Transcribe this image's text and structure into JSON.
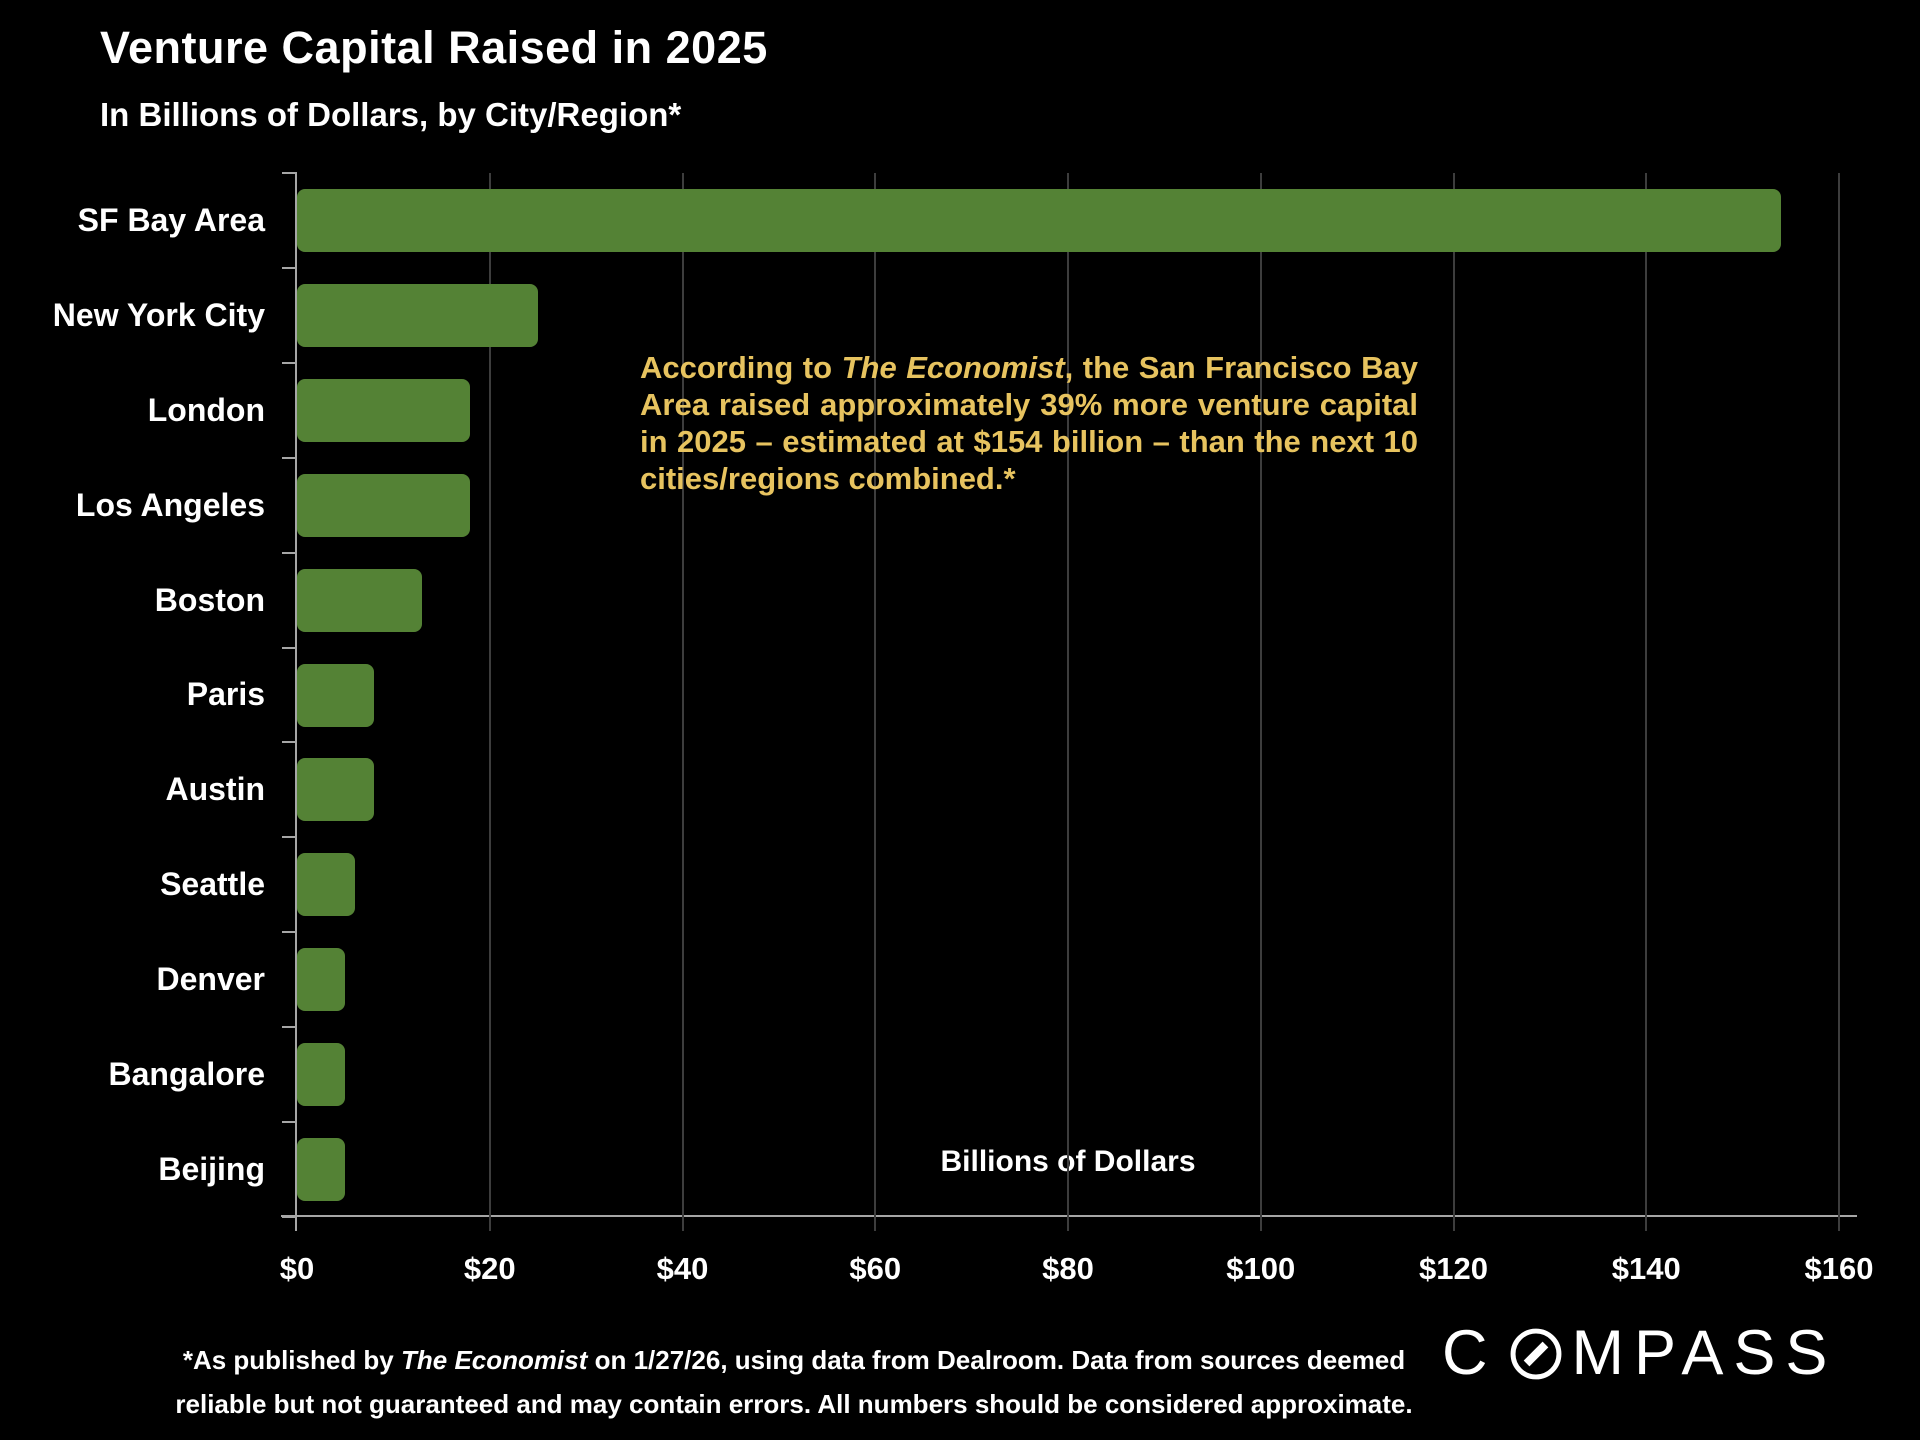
{
  "slide": {
    "title": "Venture Capital Raised in 2025",
    "subtitle": "In Billions of Dollars, by City/Region*",
    "background_color": "#000000",
    "text_color": "#ffffff"
  },
  "chart_data": {
    "type": "bar",
    "orientation": "horizontal",
    "title": "Venture Capital Raised in 2025",
    "subtitle": "In Billions of Dollars, by City/Region*",
    "categories": [
      "SF Bay Area",
      "New York City",
      "London",
      "Los Angeles",
      "Boston",
      "Paris",
      "Austin",
      "Seattle",
      "Denver",
      "Bangalore",
      "Beijing"
    ],
    "values": [
      154,
      25,
      18,
      18,
      13,
      8,
      8,
      6,
      5,
      5,
      5
    ],
    "xlabel": "Billions of Dollars",
    "ylabel": "",
    "xlim": [
      0,
      160
    ],
    "x_ticks": [
      "$0",
      "$20",
      "$40",
      "$60",
      "$80",
      "$100",
      "$120",
      "$140",
      "$160"
    ],
    "grid": true,
    "legend": false,
    "bar_color": "#548235",
    "gridline_color": "#3d3d3d",
    "axis_color": "#a6a6a6"
  },
  "annotation": {
    "color": "#e7c35f",
    "prefix": "According to ",
    "source": "The Economist",
    "rest": ", the San Francisco Bay Area raised approximately 39% more venture capital in 2025 – estimated at $154 billion – than the next 10 cities/regions combined.*"
  },
  "footnote": {
    "prefix": "*As published by ",
    "source": "The Economist",
    "rest": " on 1/27/26, using data from Dealroom. Data from sources deemed reliable but not guaranteed and may contain errors. All numbers should be considered approximate."
  },
  "logo": {
    "name": "COMPASS",
    "letters_before": "C",
    "letters_after": "MPASS"
  }
}
